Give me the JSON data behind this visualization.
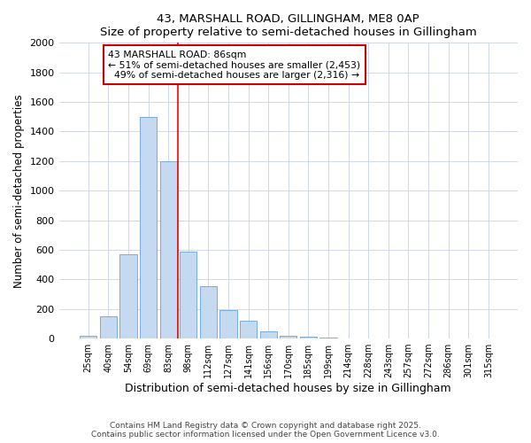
{
  "title1": "43, MARSHALL ROAD, GILLINGHAM, ME8 0AP",
  "title2": "Size of property relative to semi-detached houses in Gillingham",
  "xlabel": "Distribution of semi-detached houses by size in Gillingham",
  "ylabel": "Number of semi-detached properties",
  "categories": [
    "25sqm",
    "40sqm",
    "54sqm",
    "69sqm",
    "83sqm",
    "98sqm",
    "112sqm",
    "127sqm",
    "141sqm",
    "156sqm",
    "170sqm",
    "185sqm",
    "199sqm",
    "214sqm",
    "228sqm",
    "243sqm",
    "257sqm",
    "272sqm",
    "286sqm",
    "301sqm",
    "315sqm"
  ],
  "values": [
    20,
    150,
    570,
    1500,
    1200,
    590,
    355,
    195,
    120,
    50,
    20,
    10,
    5,
    0,
    0,
    0,
    0,
    0,
    0,
    0,
    0
  ],
  "bar_color": "#c5d9f1",
  "bar_edge_color": "#7aacdc",
  "vline_x": 4.5,
  "vline_label": "43 MARSHALL ROAD: 86sqm",
  "pct_smaller": "51% of semi-detached houses are smaller (2,453)",
  "pct_larger": "49% of semi-detached houses are larger (2,316)",
  "box_color": "#cc0000",
  "ylim": [
    0,
    2000
  ],
  "yticks": [
    0,
    200,
    400,
    600,
    800,
    1000,
    1200,
    1400,
    1600,
    1800,
    2000
  ],
  "footer1": "Contains HM Land Registry data © Crown copyright and database right 2025.",
  "footer2": "Contains public sector information licensed under the Open Government Licence v3.0.",
  "bg_color": "#ffffff",
  "plot_bg_color": "#ffffff",
  "grid_color": "#d0d8e8"
}
